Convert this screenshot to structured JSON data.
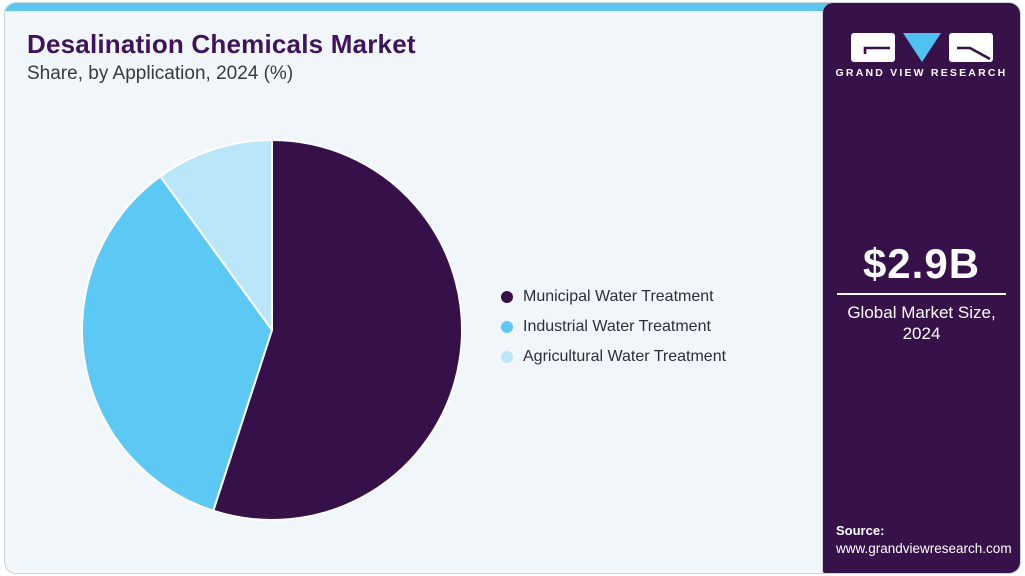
{
  "header": {
    "title": "Desalination Chemicals Market",
    "subtitle": "Share, by Application, 2024 (%)"
  },
  "chart_data": {
    "type": "pie",
    "title": "Desalination Chemicals Market Share, by Application, 2024 (%)",
    "categories": [
      "Municipal Water Treatment",
      "Industrial Water Treatment",
      "Agricultural Water Treatment"
    ],
    "values": [
      55,
      35,
      10
    ],
    "unit": "%",
    "colors": [
      "#361049",
      "#5BC9F4",
      "#BAE6FA"
    ],
    "start_angle_deg": 0,
    "direction": "clockwise",
    "slice_border_color": "#FFFFFF",
    "legend_position": "right"
  },
  "sidebar": {
    "brand": "GRAND VIEW RESEARCH",
    "market_size_value": "$2.9B",
    "market_size_label": "Global Market Size, 2024",
    "source_label": "Source:",
    "source_url": "www.grandviewresearch.com",
    "colors": {
      "background": "#371149",
      "logo_accent": "#4FC3EF",
      "logo_tile": "#FFFFFF"
    }
  },
  "theme": {
    "top_strip": "#57C7F2",
    "card_bg": "#F1F6FA",
    "title_color": "#3F135E",
    "subtitle_color": "#3A3A3A"
  }
}
